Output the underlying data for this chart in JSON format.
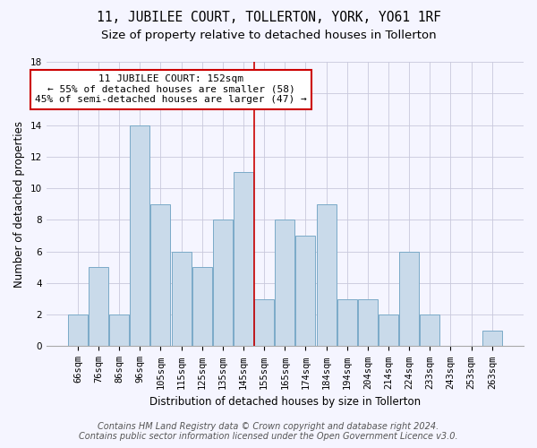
{
  "title": "11, JUBILEE COURT, TOLLERTON, YORK, YO61 1RF",
  "subtitle": "Size of property relative to detached houses in Tollerton",
  "xlabel": "Distribution of detached houses by size in Tollerton",
  "ylabel": "Number of detached properties",
  "bar_labels": [
    "66sqm",
    "76sqm",
    "86sqm",
    "96sqm",
    "105sqm",
    "115sqm",
    "125sqm",
    "135sqm",
    "145sqm",
    "155sqm",
    "165sqm",
    "174sqm",
    "184sqm",
    "194sqm",
    "204sqm",
    "214sqm",
    "224sqm",
    "233sqm",
    "243sqm",
    "253sqm",
    "263sqm"
  ],
  "bar_values": [
    2,
    5,
    2,
    14,
    9,
    6,
    5,
    8,
    11,
    3,
    8,
    7,
    9,
    3,
    3,
    2,
    6,
    2,
    0,
    0,
    1
  ],
  "bar_color": "#c9daea",
  "bar_edge_color": "#7aaac8",
  "vline_x_index": 8.5,
  "vline_color": "#cc0000",
  "annotation_lines": [
    "11 JUBILEE COURT: 152sqm",
    "← 55% of detached houses are smaller (58)",
    "45% of semi-detached houses are larger (47) →"
  ],
  "annotation_box_color": "#ffffff",
  "annotation_box_edge_color": "#cc0000",
  "ylim": [
    0,
    18
  ],
  "yticks": [
    0,
    2,
    4,
    6,
    8,
    10,
    12,
    14,
    16,
    18
  ],
  "footer_line1": "Contains HM Land Registry data © Crown copyright and database right 2024.",
  "footer_line2": "Contains public sector information licensed under the Open Government Licence v3.0.",
  "bg_color": "#f5f5ff",
  "grid_color": "#c8c8dc",
  "title_fontsize": 10.5,
  "subtitle_fontsize": 9.5,
  "axis_label_fontsize": 8.5,
  "tick_fontsize": 7.5,
  "annotation_fontsize": 8,
  "footer_fontsize": 7
}
